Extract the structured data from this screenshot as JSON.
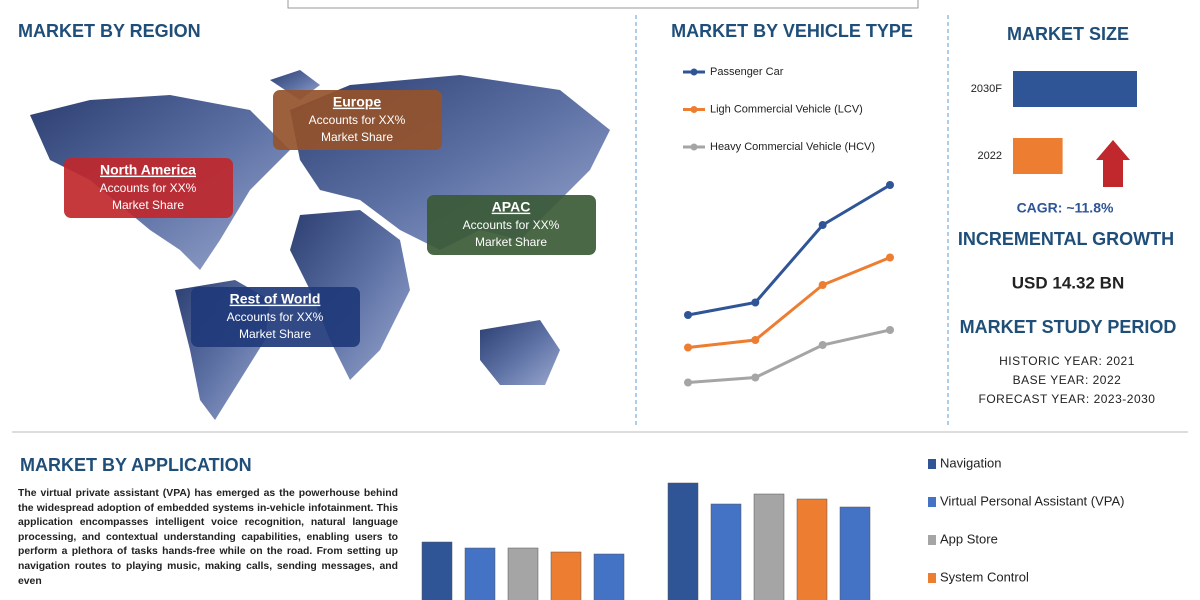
{
  "region": {
    "title": "MARKET BY REGION",
    "boxes": [
      {
        "name": "North America",
        "lines": [
          "Accounts for XX%",
          "Market Share"
        ],
        "color": "#c0282d"
      },
      {
        "name": "Europe",
        "lines": [
          "Accounts for XX%",
          "Market Share"
        ],
        "color": "#94532b"
      },
      {
        "name": "APAC",
        "lines": [
          "Accounts for XX%",
          "Market Share"
        ],
        "color": "#3b5a36"
      },
      {
        "name": "Rest of World",
        "lines": [
          "Accounts for XX%",
          "Market Share"
        ],
        "color": "#1f3a7a"
      }
    ]
  },
  "chart_data": [
    {
      "type": "line",
      "title": "MARKET BY VEHICLE TYPE",
      "categories": [
        null,
        null,
        null,
        null
      ],
      "ylim": [
        0,
        100
      ],
      "series": [
        {
          "name": "Passenger Car",
          "color": "#2f5597",
          "values": [
            34,
            39,
            70,
            86
          ]
        },
        {
          "name": "Ligh Commercial Vehicle (LCV)",
          "color": "#ed7d31",
          "values": [
            21,
            24,
            46,
            57
          ]
        },
        {
          "name": "Heavy Commercial Vehicle (HCV)",
          "color": "#a5a5a5",
          "values": [
            7,
            9,
            22,
            28
          ]
        }
      ]
    },
    {
      "type": "hbar",
      "title": "MARKET SIZE",
      "categories": [
        "2030F",
        "2022"
      ],
      "values": [
        100,
        40
      ],
      "colors": [
        "#2f5597",
        "#ed7d31"
      ],
      "xlim": [
        0,
        100
      ]
    },
    {
      "type": "groupbar",
      "categories": [
        null,
        null
      ],
      "ylim": [
        0,
        150
      ],
      "series": [
        {
          "name": "Navigation",
          "color": "#2f5597",
          "values": [
            78,
            137
          ]
        },
        {
          "name": "Virtual Personal Assistant (VPA)",
          "color": "#4472c4",
          "values": [
            72,
            116
          ]
        },
        {
          "name": "App Store",
          "color": "#a5a5a5",
          "values": [
            72,
            126
          ]
        },
        {
          "name": "System Control",
          "color": "#ed7d31",
          "values": [
            68,
            121
          ]
        },
        {
          "name": null,
          "color": "#4472c4",
          "values": [
            66,
            113
          ]
        }
      ]
    }
  ],
  "market_size": {
    "cagr": "CAGR:  ~11.8%",
    "growth_title": "INCREMENTAL GROWTH",
    "growth": "USD 14.32 BN",
    "period_title": "MARKET STUDY PERIOD",
    "period": [
      "HISTORIC YEAR: 2021",
      "BASE YEAR: 2022",
      "FORECAST YEAR: 2023-2030"
    ]
  },
  "application": {
    "title": "MARKET BY APPLICATION",
    "text": "The virtual private assistant (VPA) has emerged as the powerhouse behind the widespread adoption of embedded systems in-vehicle infotainment. This application encompasses intelligent voice recognition, natural language processing, and contextual understanding capabilities, enabling users to perform a plethora of tasks hands-free while on the road. From setting up navigation routes to playing music, making calls, sending messages, and even"
  }
}
